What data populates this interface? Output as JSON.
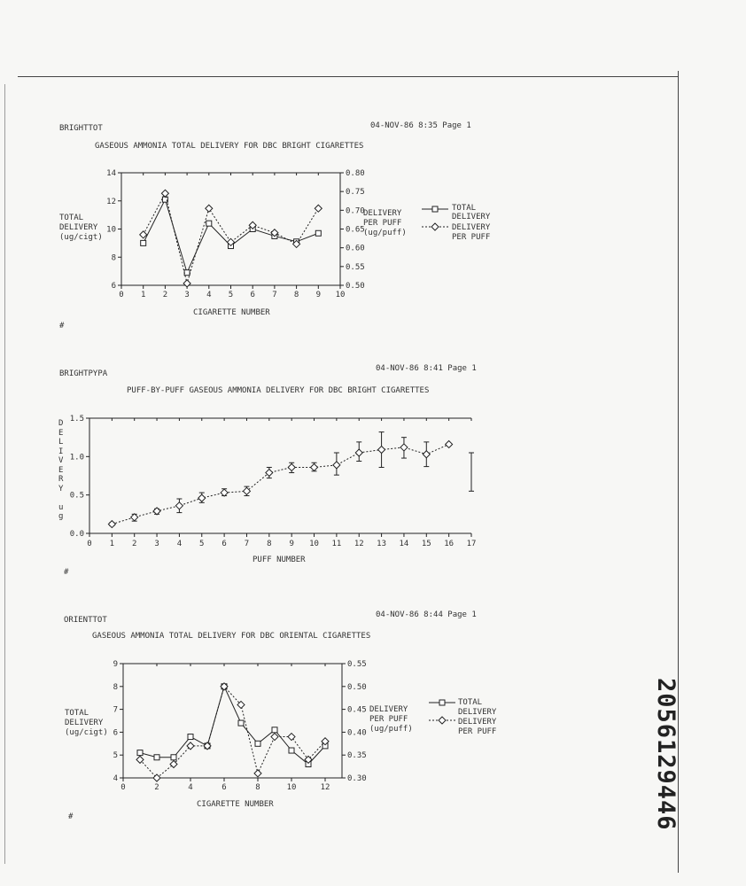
{
  "stamp": "2056129446",
  "charts": [
    {
      "file": "BRIGHTTOT",
      "timestamp": "04-NOV-86 8:35 Page 1",
      "title": "GASEOUS AMMONIA TOTAL DELIVERY FOR DBC BRIGHT CIGARETTES",
      "ylabel": [
        "TOTAL",
        "DELIVERY",
        "(ug/cigt)"
      ],
      "y2label": [
        "DELIVERY",
        "PER PUFF",
        "(ug/puff)"
      ],
      "xlabel": "CIGARETTE NUMBER",
      "legend": [
        [
          "TOTAL",
          "DELIVERY"
        ],
        [
          "DELIVERY",
          "PER PUFF"
        ]
      ],
      "footer": "#"
    },
    {
      "file": "BRIGHTPYPA",
      "timestamp": "04-NOV-86 8:41 Page 1",
      "title": "PUFF-BY-PUFF GASEOUS AMMONIA DELIVERY FOR DBC BRIGHT CIGARETTES",
      "ylabel_letters": [
        "D",
        "E",
        "L",
        "I",
        "V",
        "E",
        "R",
        "Y",
        "",
        "u",
        "g"
      ],
      "xlabel": "PUFF NUMBER",
      "footer": "#"
    },
    {
      "file": "ORIENTTOT",
      "timestamp": "04-NOV-86 8:44 Page 1",
      "title": "GASEOUS AMMONIA TOTAL DELIVERY FOR DBC ORIENTAL CIGARETTES",
      "ylabel": [
        "TOTAL",
        "DELIVERY",
        "(ug/cigt)"
      ],
      "y2label": [
        "DELIVERY",
        "PER PUFF",
        "(ug/puff)"
      ],
      "xlabel": "CIGARETTE NUMBER",
      "legend": [
        [
          "TOTAL",
          "DELIVERY"
        ],
        [
          "DELIVERY",
          "PER PUFF"
        ]
      ],
      "footer": "#"
    }
  ],
  "chart_data": [
    {
      "type": "line",
      "title": "GASEOUS AMMONIA TOTAL DELIVERY FOR DBC BRIGHT CIGARETTES",
      "xlabel": "CIGARETTE NUMBER",
      "ylabel": "TOTAL DELIVERY (ug/cigt)",
      "y2label": "DELIVERY PER PUFF (ug/puff)",
      "xlim": [
        0,
        10
      ],
      "xticks": [
        0,
        1,
        2,
        3,
        4,
        5,
        6,
        7,
        8,
        9,
        10
      ],
      "ylim": [
        6,
        14
      ],
      "yticks": [
        6,
        8,
        10,
        12,
        14
      ],
      "y2lim": [
        0.5,
        0.8
      ],
      "y2ticks": [
        "0.50",
        "0.55",
        "0.60",
        "0.65",
        "0.70",
        "0.75",
        "0.80"
      ],
      "y2ticks_num": [
        0.5,
        0.55,
        0.6,
        0.65,
        0.7,
        0.75,
        0.8
      ],
      "x": [
        1,
        2,
        3,
        4,
        5,
        6,
        7,
        8,
        9
      ],
      "series": [
        {
          "name": "TOTAL DELIVERY",
          "axis": "left",
          "marker": "square",
          "values": [
            9.0,
            12.1,
            6.9,
            10.4,
            8.8,
            10.0,
            9.5,
            9.1,
            9.7
          ]
        },
        {
          "name": "DELIVERY PER PUFF",
          "axis": "right",
          "marker": "diamond",
          "values": [
            0.635,
            0.745,
            0.505,
            0.705,
            0.615,
            0.66,
            0.64,
            0.61,
            0.705
          ]
        }
      ],
      "grid": false,
      "legend": "right"
    },
    {
      "type": "line",
      "title": "PUFF-BY-PUFF GASEOUS AMMONIA DELIVERY FOR DBC BRIGHT CIGARETTES",
      "xlabel": "PUFF NUMBER",
      "ylabel": "DELIVERY ug",
      "xlim": [
        0,
        17
      ],
      "xticks": [
        0,
        1,
        2,
        3,
        4,
        5,
        6,
        7,
        8,
        9,
        10,
        11,
        12,
        13,
        14,
        15,
        16,
        17
      ],
      "ylim": [
        0,
        1.5
      ],
      "yticks": [
        "0.0",
        "0.5",
        "1.0",
        "1.5"
      ],
      "yticks_num": [
        0,
        0.5,
        1.0,
        1.5
      ],
      "x": [
        1,
        2,
        3,
        4,
        5,
        6,
        7,
        8,
        9,
        10,
        11,
        12,
        13,
        14,
        15,
        16
      ],
      "values": [
        0.12,
        0.21,
        0.29,
        0.36,
        0.46,
        0.53,
        0.55,
        0.79,
        0.86,
        0.86,
        0.89,
        1.05,
        1.09,
        1.12,
        1.03,
        1.16
      ],
      "error_low": [
        0.1,
        0.16,
        0.25,
        0.27,
        0.4,
        0.49,
        0.49,
        0.72,
        0.79,
        0.81,
        0.76,
        0.94,
        0.86,
        0.98,
        0.87,
        1.15
      ],
      "error_high": [
        0.14,
        0.25,
        0.32,
        0.45,
        0.53,
        0.58,
        0.61,
        0.86,
        0.92,
        0.92,
        1.05,
        1.19,
        1.32,
        1.25,
        1.19,
        1.17
      ],
      "extra_error_bar": {
        "x": 17,
        "low": 0.55,
        "high": 1.05
      },
      "grid": false
    },
    {
      "type": "line",
      "title": "GASEOUS AMMONIA TOTAL DELIVERY FOR DBC ORIENTAL CIGARETTES",
      "xlabel": "CIGARETTE NUMBER",
      "ylabel": "TOTAL DELIVERY (ug/cigt)",
      "y2label": "DELIVERY PER PUFF (ug/puff)",
      "xlim": [
        0,
        13
      ],
      "xticks": [
        0,
        2,
        4,
        6,
        8,
        10,
        12
      ],
      "ylim": [
        4,
        9
      ],
      "yticks": [
        4,
        5,
        6,
        7,
        8,
        9
      ],
      "y2lim": [
        0.3,
        0.55
      ],
      "y2ticks": [
        "0.30",
        "0.35",
        "0.40",
        "0.45",
        "0.50",
        "0.55"
      ],
      "y2ticks_num": [
        0.3,
        0.35,
        0.4,
        0.45,
        0.5,
        0.55
      ],
      "x": [
        1,
        2,
        3,
        4,
        5,
        6,
        7,
        8,
        9,
        10,
        11,
        12
      ],
      "series": [
        {
          "name": "TOTAL DELIVERY",
          "axis": "left",
          "marker": "square",
          "values": [
            5.1,
            4.9,
            4.9,
            5.8,
            5.4,
            8.0,
            6.4,
            5.5,
            6.1,
            5.2,
            4.6,
            5.4
          ]
        },
        {
          "name": "DELIVERY PER PUFF",
          "axis": "right",
          "marker": "diamond",
          "values": [
            0.34,
            0.3,
            0.33,
            0.37,
            0.37,
            0.5,
            0.46,
            0.31,
            0.39,
            0.39,
            0.34,
            0.38
          ]
        }
      ],
      "grid": false,
      "legend": "right"
    }
  ]
}
